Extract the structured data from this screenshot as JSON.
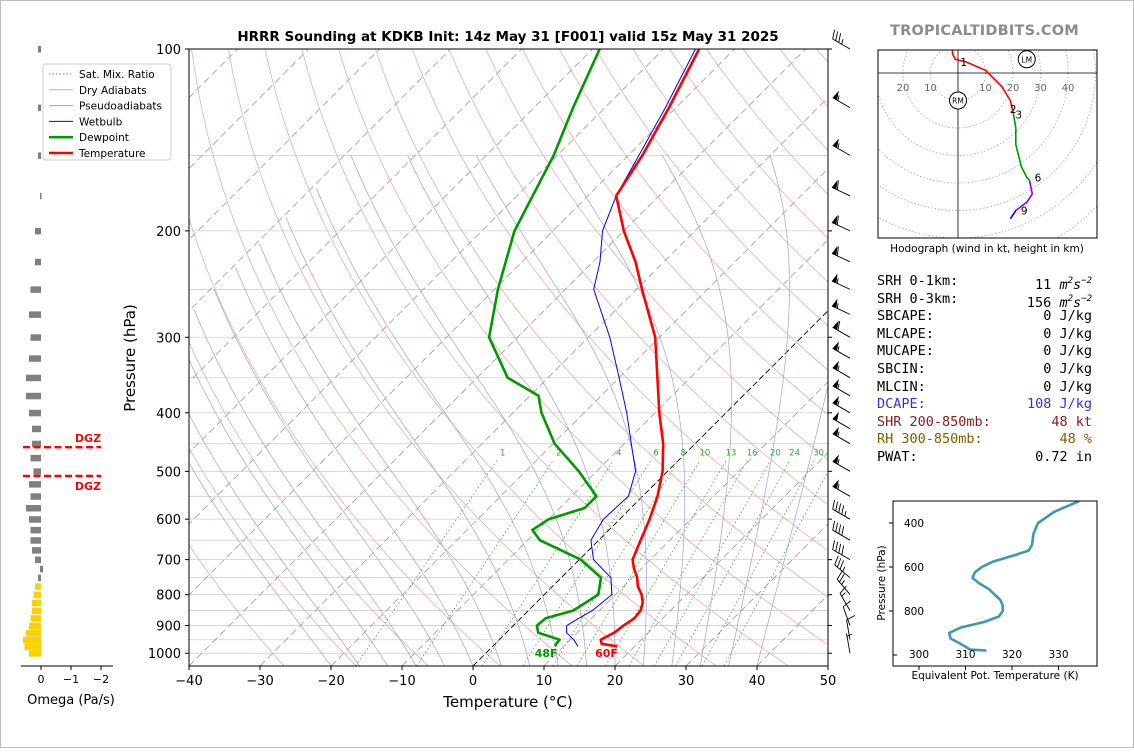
{
  "header": {
    "title": "HRRR Sounding at KDKB Init: 14z May 31 [F001] valid 15z May 31 2025",
    "site": "TROPICALTIDBITS.COM"
  },
  "colors": {
    "temperature": "#ff0000",
    "dewpoint": "#009900",
    "wetbulb": "#0000ff",
    "dry_adiabat": "#e8a0a0",
    "pseudoadiabat": "#a0a0e0",
    "mixing_ratio": "#33aa33",
    "dgz": "#ff0000",
    "omega_up": "#ffd000",
    "omega_down": "#808080",
    "theta_e": "#3b9ab2",
    "dcape": "#3333cc",
    "shr": "#8b1a1a",
    "rh": "#806000"
  },
  "chart_data": [
    {
      "type": "line",
      "name": "skewt",
      "title": "HRRR Sounding at KDKB Init: 14z May 31 [F001] valid 15z May 31 2025",
      "xlabel": "Temperature (°C)",
      "ylabel": "Pressure (hPa)",
      "xlim": [
        -40,
        50
      ],
      "ylim": [
        1050,
        100
      ],
      "y_scale": "log",
      "x_ticks": [
        -40,
        -30,
        -20,
        -10,
        0,
        10,
        20,
        30,
        40,
        50
      ],
      "y_ticks": [
        100,
        200,
        300,
        400,
        500,
        600,
        700,
        800,
        900,
        1000
      ],
      "grid": true,
      "legend": {
        "placement": "top-left",
        "entries": [
          "Sat. Mix. Ratio",
          "Dry Adiabats",
          "Pseudoadiabats",
          "Wetbulb",
          "Dewpoint",
          "Temperature"
        ]
      },
      "series": [
        {
          "name": "Temperature",
          "points": [
            [
              974,
              17.5
            ],
            [
              965,
              15.0
            ],
            [
              950,
              14.3
            ],
            [
              925,
              15.2
            ],
            [
              900,
              15.5
            ],
            [
              875,
              16.0
            ],
            [
              850,
              15.8
            ],
            [
              825,
              15.0
            ],
            [
              800,
              13.7
            ],
            [
              775,
              12.0
            ],
            [
              750,
              10.7
            ],
            [
              725,
              9.0
            ],
            [
              700,
              7.5
            ],
            [
              650,
              5.9
            ],
            [
              600,
              4.2
            ],
            [
              550,
              2.1
            ],
            [
              500,
              -0.7
            ],
            [
              450,
              -4.5
            ],
            [
              400,
              -9.4
            ],
            [
              350,
              -14.6
            ],
            [
              300,
              -20.6
            ],
            [
              250,
              -29.2
            ],
            [
              225,
              -34.0
            ],
            [
              200,
              -40.0
            ],
            [
              175,
              -46.0
            ],
            [
              150,
              -48.0
            ],
            [
              125,
              -51.0
            ],
            [
              100,
              -55.0
            ]
          ]
        },
        {
          "name": "Dewpoint",
          "points": [
            [
              974,
              8.8
            ],
            [
              965,
              8.6
            ],
            [
              950,
              8.5
            ],
            [
              925,
              4.5
            ],
            [
              900,
              3.3
            ],
            [
              875,
              3.5
            ],
            [
              850,
              6.3
            ],
            [
              800,
              7.6
            ],
            [
              750,
              5.6
            ],
            [
              700,
              0.2
            ],
            [
              650,
              -8.3
            ],
            [
              625,
              -10.8
            ],
            [
              600,
              -10.0
            ],
            [
              575,
              -6.5
            ],
            [
              550,
              -6.5
            ],
            [
              500,
              -12.5
            ],
            [
              450,
              -19.8
            ],
            [
              400,
              -26.0
            ],
            [
              375,
              -28.8
            ],
            [
              350,
              -35.7
            ],
            [
              300,
              -44.0
            ],
            [
              250,
              -49.5
            ],
            [
              200,
              -55.4
            ],
            [
              150,
              -60.5
            ],
            [
              125,
              -64.5
            ],
            [
              100,
              -69.0
            ]
          ]
        },
        {
          "name": "Wetbulb",
          "points": [
            [
              974,
              12.0
            ],
            [
              950,
              10.5
            ],
            [
              925,
              8.5
            ],
            [
              900,
              7.5
            ],
            [
              875,
              8.2
            ],
            [
              850,
              9.0
            ],
            [
              800,
              9.5
            ],
            [
              750,
              7.0
            ],
            [
              700,
              2.0
            ],
            [
              650,
              -1.1
            ],
            [
              600,
              -2.3
            ],
            [
              550,
              -2.0
            ],
            [
              500,
              -4.5
            ],
            [
              450,
              -9.0
            ],
            [
              400,
              -14.0
            ],
            [
              350,
              -20.0
            ],
            [
              300,
              -27.0
            ],
            [
              250,
              -36.0
            ],
            [
              225,
              -39.0
            ],
            [
              200,
              -43.0
            ],
            [
              175,
              -46.0
            ],
            [
              150,
              -48.5
            ],
            [
              125,
              -51.5
            ],
            [
              100,
              -55.5
            ]
          ]
        }
      ],
      "annotations": [
        {
          "text": "48F",
          "series": "Dewpoint",
          "p": 1000,
          "t": 8.5
        },
        {
          "text": "60F",
          "series": "Temperature",
          "p": 1000,
          "t": 17.0
        }
      ],
      "mixing_ratio_labels": [
        "1",
        "2",
        "4",
        "6",
        "8",
        "10",
        "13",
        "16",
        "20",
        "24",
        "30",
        "36"
      ],
      "wind_barbs": [
        {
          "p": 100,
          "kt": 35,
          "dir": 300
        },
        {
          "p": 125,
          "kt": 55,
          "dir": 300
        },
        {
          "p": 150,
          "kt": 55,
          "dir": 300
        },
        {
          "p": 175,
          "kt": 60,
          "dir": 295
        },
        {
          "p": 200,
          "kt": 60,
          "dir": 295
        },
        {
          "p": 225,
          "kt": 60,
          "dir": 295
        },
        {
          "p": 250,
          "kt": 55,
          "dir": 295
        },
        {
          "p": 275,
          "kt": 55,
          "dir": 295
        },
        {
          "p": 300,
          "kt": 60,
          "dir": 300
        },
        {
          "p": 325,
          "kt": 55,
          "dir": 300
        },
        {
          "p": 350,
          "kt": 55,
          "dir": 300
        },
        {
          "p": 375,
          "kt": 55,
          "dir": 300
        },
        {
          "p": 400,
          "kt": 55,
          "dir": 300
        },
        {
          "p": 425,
          "kt": 50,
          "dir": 300
        },
        {
          "p": 450,
          "kt": 55,
          "dir": 300
        },
        {
          "p": 500,
          "kt": 55,
          "dir": 300
        },
        {
          "p": 550,
          "kt": 55,
          "dir": 300
        },
        {
          "p": 600,
          "kt": 45,
          "dir": 300
        },
        {
          "p": 650,
          "kt": 40,
          "dir": 300
        },
        {
          "p": 700,
          "kt": 40,
          "dir": 300
        },
        {
          "p": 750,
          "kt": 35,
          "dir": 310
        },
        {
          "p": 800,
          "kt": 25,
          "dir": 320
        },
        {
          "p": 850,
          "kt": 15,
          "dir": 330
        },
        {
          "p": 900,
          "kt": 10,
          "dir": 340
        },
        {
          "p": 950,
          "kt": 10,
          "dir": 350
        },
        {
          "p": 1000,
          "kt": 5,
          "dir": 350
        }
      ]
    },
    {
      "type": "bar",
      "name": "omega",
      "xlabel": "Omega (Pa/s)",
      "x_ticks": [
        "0",
        "−1",
        "−2"
      ],
      "xlim": [
        0.3,
        -2.0
      ],
      "dgz_label": "DGZ",
      "dgz_levels": [
        456,
        509
      ],
      "p": [
        100,
        125,
        150,
        175,
        200,
        225,
        250,
        275,
        300,
        325,
        350,
        375,
        400,
        425,
        450,
        475,
        500,
        525,
        550,
        575,
        600,
        625,
        650,
        675,
        700,
        725,
        750,
        775,
        800,
        825,
        850,
        875,
        900,
        925,
        950,
        975,
        1000
      ],
      "values": [
        -0.05,
        -0.05,
        -0.05,
        0.0,
        -0.15,
        -0.15,
        -0.3,
        -0.35,
        -0.3,
        -0.35,
        -0.45,
        -0.45,
        -0.35,
        -0.25,
        -0.25,
        -0.3,
        -0.2,
        -0.35,
        -0.3,
        -0.45,
        -0.35,
        -0.3,
        -0.3,
        -0.25,
        -0.15,
        0.05,
        -0.05,
        -0.15,
        -0.2,
        -0.25,
        -0.25,
        -0.3,
        -0.35,
        -0.45,
        -0.55,
        -0.5,
        -0.35
      ]
    },
    {
      "type": "line",
      "name": "hodograph",
      "xlabel": "Hodograph (wind in kt, height in km)",
      "x_tick_labels": [
        "20",
        "10",
        "10",
        "20",
        "30",
        "40"
      ],
      "markers": [
        {
          "label": "RM",
          "u": 0,
          "v": -10
        },
        {
          "label": "LM",
          "u": 25,
          "v": 5
        }
      ],
      "segments": [
        {
          "color": "#ff0000",
          "points": [
            [
              -2,
              12
            ],
            [
              -2,
              7
            ],
            [
              -1,
              5
            ],
            [
              3,
              4
            ],
            [
              10,
              1
            ],
            [
              16,
              -5
            ],
            [
              19,
              -10
            ],
            [
              20,
              -14
            ]
          ]
        },
        {
          "color": "#009900",
          "points": [
            [
              20,
              -14
            ],
            [
              21,
              -20
            ],
            [
              21,
              -26
            ],
            [
              23,
              -34
            ],
            [
              25,
              -38
            ],
            [
              26,
              -39
            ]
          ]
        },
        {
          "color": "#9900cc",
          "points": [
            [
              26,
              -39
            ],
            [
              27,
              -44
            ],
            [
              25,
              -47
            ],
            [
              21,
              -50
            ]
          ]
        },
        {
          "color": "#0000ff",
          "points": [
            [
              21,
              -50
            ],
            [
              19,
              -53
            ]
          ]
        }
      ],
      "height_labels": [
        {
          "text": "1",
          "u": 1,
          "v": 4
        },
        {
          "text": "2",
          "u": 19,
          "v": -13
        },
        {
          "text": "3",
          "u": 21,
          "v": -15
        },
        {
          "text": "6",
          "u": 28,
          "v": -38
        },
        {
          "text": "9",
          "u": 23,
          "v": -50
        }
      ]
    },
    {
      "type": "line",
      "name": "theta_e",
      "xlabel": "Equivalent Pot. Temperature (K)",
      "ylabel": "Pressure (hPa)",
      "x_ticks": [
        300,
        310,
        320,
        330
      ],
      "y_ticks": [
        400,
        600,
        800
      ],
      "series": [
        {
          "name": "",
          "points": [
            [
              300,
              334.5
            ],
            [
              350,
              329.0
            ],
            [
              400,
              325.6
            ],
            [
              450,
              324.6
            ],
            [
              500,
              324.3
            ],
            [
              525,
              323.6
            ],
            [
              550,
              320.0
            ],
            [
              575,
              316.0
            ],
            [
              600,
              313.5
            ],
            [
              625,
              312.0
            ],
            [
              650,
              311.5
            ],
            [
              675,
              313.0
            ],
            [
              700,
              315.0
            ],
            [
              750,
              317.5
            ],
            [
              775,
              318.0
            ],
            [
              800,
              318.0
            ],
            [
              825,
              317.2
            ],
            [
              850,
              314.0
            ],
            [
              875,
              309.0
            ],
            [
              900,
              306.5
            ],
            [
              925,
              306.8
            ],
            [
              950,
              309.0
            ],
            [
              975,
              311.0
            ],
            [
              980,
              314.5
            ]
          ]
        }
      ]
    }
  ],
  "params": {
    "srh01_label": "SRH 0-1km:",
    "srh01_value": "11",
    "srh03_label": "SRH 0-3km:",
    "srh03_value": "156",
    "unit_srh": "m",
    "unit_srh_s": "s",
    "unit_srh_exp1": "2",
    "unit_srh_exp2": "−2",
    "sbcape_label": "SBCAPE:",
    "sbcape_value": "0 J/kg",
    "mlcape_label": "MLCAPE:",
    "mlcape_value": "0 J/kg",
    "mucape_label": "MUCAPE:",
    "mucape_value": "0 J/kg",
    "sbcin_label": "SBCIN:",
    "sbcin_value": "0 J/kg",
    "mlcin_label": "MLCIN:",
    "mlcin_value": "0 J/kg",
    "dcape_label": "DCAPE:",
    "dcape_value": "108 J/kg",
    "shr_label": "SHR 200-850mb:",
    "shr_value": "48 kt",
    "rh_label": "RH 300-850mb:",
    "rh_value": "48 %",
    "pwat_label": "PWAT:",
    "pwat_value": "0.72 in"
  }
}
